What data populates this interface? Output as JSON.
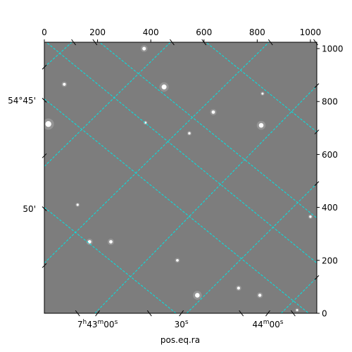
{
  "chart_data": {
    "type": "image",
    "xlabel": "pos.eq.ra",
    "ylabel": "",
    "pixel_axes": {
      "x": {
        "lim": [
          0,
          1024
        ],
        "ticks": [
          0,
          200,
          400,
          600,
          800,
          1000
        ],
        "side": "top"
      },
      "y": {
        "lim": [
          0,
          1024
        ],
        "ticks": [
          0,
          200,
          400,
          600,
          800,
          1000
        ],
        "side": "right"
      }
    },
    "world_ticks": {
      "bottom": [
        {
          "label": "7h43m00s",
          "base": "7",
          "sup1": "h",
          "mid": "43",
          "sup2": "m",
          "end": "00",
          "sup3": "s",
          "x_pix": 200
        },
        {
          "label": "30s",
          "base": "30",
          "sup3": "s",
          "x_pix": 515
        },
        {
          "label": "44m00s",
          "base": "44",
          "sup2": "m",
          "end": "00",
          "sup3": "s",
          "x_pix": 840
        }
      ],
      "left": [
        {
          "label": "54°45'",
          "y_pix": 805
        },
        {
          "label": "50'",
          "y_pix": 395
        }
      ]
    },
    "grid": true,
    "grid_color": "#00e5e5",
    "image_background": "#7d7d7d",
    "stars": [
      {
        "x": 375,
        "y": 1000,
        "mag": 2.2
      },
      {
        "x": 450,
        "y": 855,
        "mag": 3.2
      },
      {
        "x": 75,
        "y": 865,
        "mag": 1.6
      },
      {
        "x": 15,
        "y": 715,
        "mag": 4.0
      },
      {
        "x": 815,
        "y": 710,
        "mag": 3.0
      },
      {
        "x": 635,
        "y": 760,
        "mag": 2.0
      },
      {
        "x": 545,
        "y": 680,
        "mag": 1.2
      },
      {
        "x": 380,
        "y": 720,
        "mag": 1.0
      },
      {
        "x": 170,
        "y": 270,
        "mag": 2.0
      },
      {
        "x": 250,
        "y": 270,
        "mag": 2.0
      },
      {
        "x": 500,
        "y": 200,
        "mag": 1.4
      },
      {
        "x": 575,
        "y": 68,
        "mag": 3.0
      },
      {
        "x": 810,
        "y": 68,
        "mag": 1.8
      },
      {
        "x": 730,
        "y": 95,
        "mag": 1.6
      },
      {
        "x": 1000,
        "y": 365,
        "mag": 1.2
      },
      {
        "x": 125,
        "y": 410,
        "mag": 1.1
      },
      {
        "x": 950,
        "y": 12,
        "mag": 1.0
      },
      {
        "x": 820,
        "y": 830,
        "mag": 1.0
      }
    ],
    "grid_lines": {
      "ra": [
        {
          "a": [
            0,
            810
          ],
          "b": [
            1024,
            -25
          ]
        },
        {
          "a": [
            0,
            400
          ],
          "b": [
            495,
            0
          ]
        },
        {
          "a": [
            0,
            1030
          ],
          "b": [
            1024,
            190
          ]
        },
        {
          "a": [
            200,
            1030
          ],
          "b": [
            1024,
            360
          ]
        },
        {
          "a": [
            600,
            1030
          ],
          "b": [
            1024,
            685
          ]
        }
      ],
      "dec": [
        {
          "a": [
            0,
            930
          ],
          "b": [
            110,
            1030
          ]
        },
        {
          "a": [
            0,
            555
          ],
          "b": [
            480,
            1030
          ]
        },
        {
          "a": [
            0,
            190
          ],
          "b": [
            850,
            1030
          ]
        },
        {
          "a": [
            190,
            0
          ],
          "b": [
            1024,
            860
          ]
        },
        {
          "a": [
            535,
            0
          ],
          "b": [
            1024,
            490
          ]
        },
        {
          "a": [
            890,
            0
          ],
          "b": [
            1024,
            135
          ]
        }
      ]
    }
  }
}
